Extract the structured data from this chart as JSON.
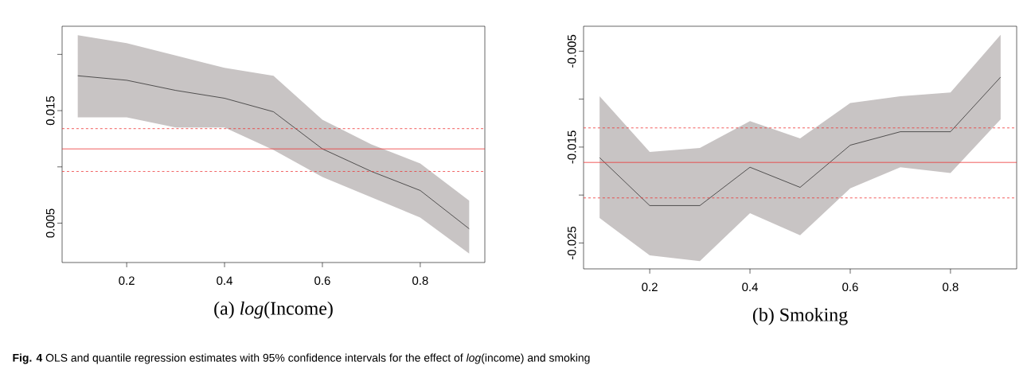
{
  "chart_data": [
    {
      "type": "line",
      "xlabel": "(a) *log*(Income)",
      "x": [
        0.1,
        0.2,
        0.3,
        0.4,
        0.5,
        0.6,
        0.7,
        0.8,
        0.9
      ],
      "xlim": [
        0.068,
        0.932
      ],
      "xticks": [
        0.2,
        0.4,
        0.6,
        0.8
      ],
      "ylim": [
        0.0015,
        0.0225
      ],
      "yticks": [
        0.005,
        {
          "value": 0.01,
          "label": null
        },
        0.015,
        {
          "value": 0.02,
          "label": null
        }
      ],
      "marker": "none",
      "line_style": "solid",
      "series": [
        {
          "color": "#000000",
          "values": [
            0.0181,
            0.0177,
            0.0168,
            0.0161,
            0.0149,
            0.0116,
            0.0096,
            0.0079,
            0.0045
          ],
          "upper": [
            0.0217,
            0.021,
            0.0199,
            0.0188,
            0.0181,
            0.0142,
            0.012,
            0.0103,
            0.007
          ],
          "lower": [
            0.0144,
            0.0144,
            0.0135,
            0.0135,
            0.0115,
            0.0091,
            0.0073,
            0.0055,
            0.0023
          ]
        }
      ],
      "ref_lines": [
        {
          "axis": "y",
          "value": 0.0116,
          "color": "#ee3333",
          "line_style": "solid"
        },
        {
          "axis": "y",
          "value": 0.0134,
          "color": "#ee3333",
          "line_style": "dashed"
        },
        {
          "axis": "y",
          "value": 0.0096,
          "color": "#ee3333",
          "line_style": "dashed"
        }
      ],
      "annotations": [
        "**Fig. 4** OLS and quantile regression estimates with 95% confidence intervals for the effect of *log*(income) and smoking"
      ]
    },
    {
      "type": "line",
      "xlabel": "(b) Smoking",
      "x": [
        0.1,
        0.2,
        0.3,
        0.4,
        0.5,
        0.6,
        0.7,
        0.8,
        0.9
      ],
      "xlim": [
        0.068,
        0.932
      ],
      "xticks": [
        0.2,
        0.4,
        0.6,
        0.8
      ],
      "ylim": [
        -0.0277,
        -0.0024
      ],
      "yticks": [
        -0.005,
        {
          "value": -0.01,
          "label": null
        },
        -0.015,
        {
          "value": -0.02,
          "label": null
        },
        -0.025
      ],
      "marker": "none",
      "line_style": "solid",
      "series": [
        {
          "color": "#000000",
          "values": [
            -0.0161,
            -0.0211,
            -0.0211,
            -0.0171,
            -0.0192,
            -0.0148,
            -0.0134,
            -0.0134,
            -0.0077
          ],
          "upper": [
            -0.0097,
            -0.0155,
            -0.0151,
            -0.0123,
            -0.0141,
            -0.0104,
            -0.0097,
            -0.0093,
            -0.0033
          ],
          "lower": [
            -0.0224,
            -0.0263,
            -0.0269,
            -0.0219,
            -0.0242,
            -0.0193,
            -0.0171,
            -0.0177,
            -0.0121
          ]
        }
      ],
      "ref_lines": [
        {
          "axis": "y",
          "value": -0.0166,
          "color": "#ee3333",
          "line_style": "solid"
        },
        {
          "axis": "y",
          "value": -0.013,
          "color": "#ee3333",
          "line_style": "dashed"
        },
        {
          "axis": "y",
          "value": -0.0203,
          "color": "#ee3333",
          "line_style": "dashed"
        }
      ]
    }
  ]
}
